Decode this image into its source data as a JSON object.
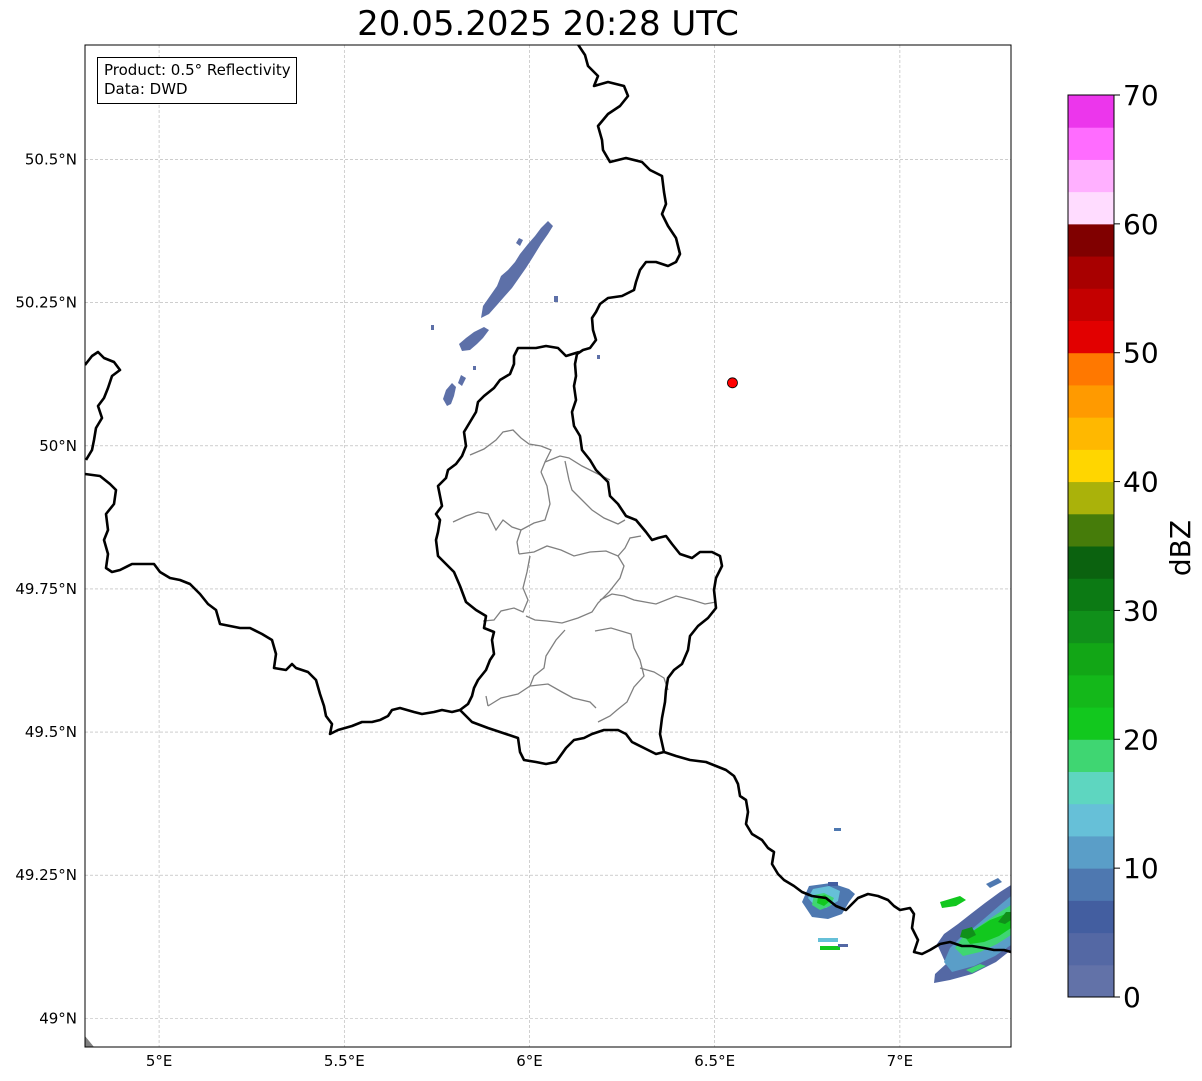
{
  "title": "20.05.2025 20:28 UTC",
  "infobox": {
    "product_prefix": "Product: ",
    "product": "0.5° Reflectivity",
    "data_prefix": "Data: ",
    "data": "DWD"
  },
  "map": {
    "lon_range": [
      4.8,
      7.3
    ],
    "lat_range": [
      48.95,
      50.7
    ],
    "lon_ticks": [
      "5°E",
      "5.5°E",
      "6°E",
      "6.5°E",
      "7°E"
    ],
    "lat_ticks": [
      "49°N",
      "49.25°N",
      "49.5°N",
      "49.75°N",
      "50°N",
      "50.25°N",
      "50.5°N"
    ],
    "gridlines": true,
    "radar_site": {
      "lon": 6.548,
      "lat": 50.11,
      "color": "#ff0000"
    },
    "country_border_color": "#000000",
    "district_border_color": "#808080"
  },
  "colorbar": {
    "label": "dBZ",
    "ticks": [
      "0",
      "10",
      "20",
      "30",
      "40",
      "50",
      "60",
      "70"
    ],
    "range": [
      0,
      70
    ],
    "step": 2.5,
    "colors": [
      "#6272a8",
      "#5468a4",
      "#435ea0",
      "#4e78b0",
      "#5a9ec8",
      "#66c0d8",
      "#5ed6c0",
      "#3fd672",
      "#12c81e",
      "#14b81a",
      "#12a616",
      "#10901a",
      "#0c7a14",
      "#0b620f",
      "#467c0a",
      "#aab20a",
      "#ffd600",
      "#ffb800",
      "#ff9a00",
      "#ff7800",
      "#e20000",
      "#c40000",
      "#a80000",
      "#800000",
      "#ffdcff",
      "#ffb0ff",
      "#ff6cff",
      "#ec36ec"
    ]
  },
  "reflectivity_cells": [
    {
      "lon": 5.97,
      "lat": 50.32,
      "dbz": 2,
      "w": 1,
      "h": 5
    },
    {
      "lon": 6.77,
      "lat": 49.21,
      "dbz": 18,
      "w": 2,
      "h": 2
    },
    {
      "lon": 7.18,
      "lat": 49.16,
      "dbz": 24,
      "w": 3,
      "h": 3
    }
  ]
}
